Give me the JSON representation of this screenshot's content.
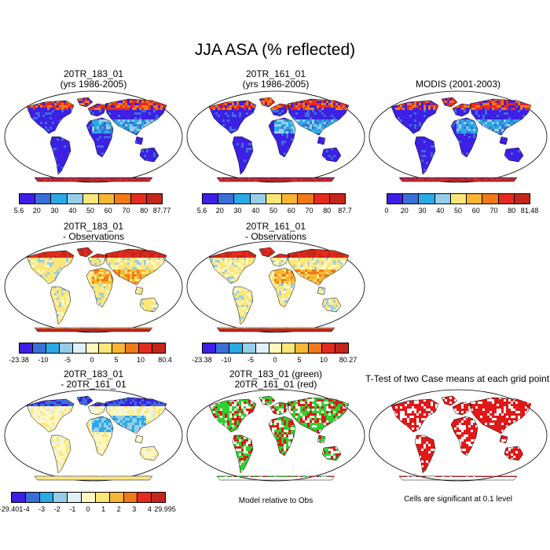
{
  "title": "JJA ASA (% reflected)",
  "colors": {
    "scale_abs": [
      "#3d1fe6",
      "#3a6fd8",
      "#2ba9e6",
      "#96cde9",
      "#fbe679",
      "#f7b733",
      "#ef7a17",
      "#e62b1e",
      "#c4261c"
    ],
    "scale_diff": [
      "#3d1fe6",
      "#3a6fd8",
      "#2ba9e6",
      "#96cde9",
      "#dff0fa",
      "#fff7c0",
      "#fbe679",
      "#f7b733",
      "#ef7a17",
      "#e62b1e",
      "#c4261c"
    ],
    "land_bg": "#3b2ee0",
    "green": "#2fd12f",
    "red": "#e01818"
  },
  "panels": [
    {
      "title1": "20TR_183_01",
      "title2": "(yrs 1986-2005)",
      "style": "abs",
      "colorbar": [
        "5.6",
        "20",
        "30",
        "40",
        "50",
        "60",
        "70",
        "80",
        "87.77"
      ]
    },
    {
      "title1": "20TR_161_01",
      "title2": "(yrs 1986-2005)",
      "style": "abs",
      "colorbar": [
        "5.6",
        "20",
        "30",
        "40",
        "50",
        "60",
        "70",
        "80",
        "87.7"
      ]
    },
    {
      "title1": "MODIS (2001-2003)",
      "title2": "",
      "style": "abs",
      "colorbar": [
        "0",
        "20",
        "30",
        "40",
        "50",
        "60",
        "70",
        "80",
        "81.48"
      ]
    },
    {
      "title1": "20TR_183_01",
      "title2": "- Observations",
      "style": "diff",
      "colorbar": [
        "-23.38",
        "-10",
        "-5",
        "0",
        "5",
        "10",
        "80.4"
      ]
    },
    {
      "title1": "20TR_161_01",
      "title2": "- Observations",
      "style": "diff",
      "colorbar": [
        "-23.38",
        "-10",
        "-5",
        "0",
        "5",
        "10",
        "80.27"
      ]
    },
    {
      "title1": "20TR_183_01",
      "title2": "- 20TR_161_01",
      "style": "diff2",
      "colorbar": [
        "-29.401",
        "-4",
        "-3",
        "-2",
        "-1",
        "0",
        "1",
        "2",
        "3",
        "4",
        "29.995"
      ]
    },
    {
      "title1": "20TR_183_01 (green)",
      "title2": "20TR_161_01 (red)",
      "style": "rg",
      "note": "Model relative to Obs"
    },
    {
      "title1": "T-Test of two Case means at each grid point",
      "title2": "",
      "style": "ttest",
      "note": "Cells are significant at 0.1 level"
    }
  ]
}
